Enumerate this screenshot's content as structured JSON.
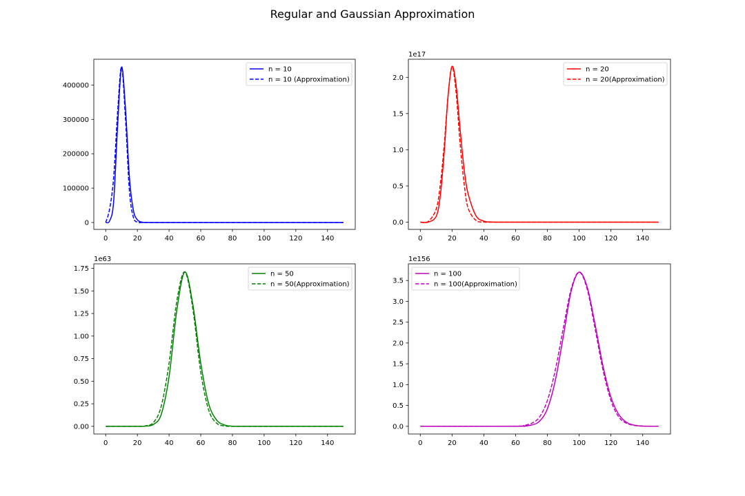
{
  "figure": {
    "title": "Regular and Gaussian Approximation"
  },
  "chart_data": [
    {
      "type": "line",
      "n": 10,
      "x": [
        0,
        2.5,
        5,
        7.5,
        10,
        12.5,
        15,
        17.5,
        20,
        22.5,
        25,
        30,
        40,
        60,
        80,
        100,
        120,
        150
      ],
      "series": [
        {
          "name": "n = 10",
          "style": "solid",
          "color": "#0000ff",
          "values": [
            0,
            5000,
            60000,
            280000,
            452000,
            330000,
            130000,
            35000,
            8000,
            1500,
            200,
            0,
            0,
            0,
            0,
            0,
            0,
            0
          ]
        },
        {
          "name": "n = 10 (Approximation)",
          "style": "dashed",
          "color": "#0000ff",
          "values": [
            0,
            40000,
            130000,
            320000,
            452000,
            300000,
            90000,
            15000,
            1000,
            100,
            0,
            0,
            0,
            0,
            0,
            0,
            0,
            0
          ]
        }
      ],
      "ylim": [
        -20000,
        475000
      ],
      "yticks": [
        0,
        100000,
        200000,
        300000,
        400000
      ],
      "ytick_labels": [
        "0",
        "100000",
        "200000",
        "300000",
        "400000"
      ],
      "offset_text": "",
      "legend_loc": "upper right"
    },
    {
      "type": "line",
      "n": 20,
      "x": [
        0,
        5,
        10,
        12.5,
        15,
        17.5,
        20,
        22.5,
        25,
        27.5,
        30,
        35,
        40,
        45,
        50,
        60,
        100,
        150
      ],
      "series": [
        {
          "name": "n = 20",
          "style": "solid",
          "color": "#ff0000",
          "values": [
            0,
            0.001,
            0.08,
            0.35,
            0.95,
            1.75,
            2.15,
            1.9,
            1.3,
            0.75,
            0.4,
            0.09,
            0.015,
            0.002,
            0,
            0,
            0,
            0
          ]
        },
        {
          "name": "n = 20(Approximation)",
          "style": "dashed",
          "color": "#ff0000",
          "values": [
            0,
            0.01,
            0.18,
            0.5,
            1.05,
            1.75,
            2.15,
            1.8,
            1.1,
            0.55,
            0.2,
            0.025,
            0.001,
            0,
            0,
            0,
            0,
            0
          ]
        }
      ],
      "ylim": [
        -0.1,
        2.25
      ],
      "yticks": [
        0,
        0.5,
        1.0,
        1.5,
        2.0
      ],
      "ytick_labels": [
        "0.0",
        "0.5",
        "1.0",
        "1.5",
        "2.0"
      ],
      "offset_text": "1e17",
      "legend_loc": "upper right"
    },
    {
      "type": "line",
      "n": 50,
      "x": [
        0,
        20,
        25,
        30,
        35,
        40,
        45,
        50,
        55,
        60,
        65,
        70,
        75,
        80,
        90,
        150
      ],
      "series": [
        {
          "name": "n = 50",
          "style": "solid",
          "color": "#008000",
          "values": [
            0,
            0,
            0.002,
            0.02,
            0.13,
            0.55,
            1.3,
            1.71,
            1.35,
            0.7,
            0.25,
            0.07,
            0.015,
            0.002,
            0,
            0
          ]
        },
        {
          "name": "n = 50(Approximation)",
          "style": "dashed",
          "color": "#008000",
          "values": [
            0,
            0,
            0.005,
            0.04,
            0.22,
            0.7,
            1.4,
            1.71,
            1.3,
            0.6,
            0.18,
            0.035,
            0.004,
            0,
            0,
            0
          ]
        }
      ],
      "ylim": [
        -0.085,
        1.8
      ],
      "yticks": [
        0,
        0.25,
        0.5,
        0.75,
        1.0,
        1.25,
        1.5,
        1.75
      ],
      "ytick_labels": [
        "0.00",
        "0.25",
        "0.50",
        "0.75",
        "1.00",
        "1.25",
        "1.50",
        "1.75"
      ],
      "offset_text": "1e63",
      "legend_loc": "upper right"
    },
    {
      "type": "line",
      "n": 100,
      "x": [
        0,
        60,
        65,
        70,
        75,
        80,
        85,
        90,
        95,
        100,
        105,
        110,
        115,
        120,
        125,
        130,
        135,
        140,
        150
      ],
      "series": [
        {
          "name": "n = 100",
          "style": "solid",
          "color": "#bf00bf",
          "values": [
            0,
            0,
            0.005,
            0.03,
            0.12,
            0.42,
            1.1,
            2.15,
            3.25,
            3.7,
            3.35,
            2.45,
            1.45,
            0.7,
            0.28,
            0.09,
            0.025,
            0.006,
            0
          ]
        },
        {
          "name": "n = 100(Approximation)",
          "style": "dashed",
          "color": "#bf00bf",
          "values": [
            0,
            0.003,
            0.02,
            0.07,
            0.22,
            0.62,
            1.35,
            2.35,
            3.3,
            3.7,
            3.3,
            2.35,
            1.35,
            0.62,
            0.22,
            0.07,
            0.02,
            0.004,
            0
          ]
        }
      ],
      "ylim": [
        -0.185,
        3.9
      ],
      "yticks": [
        0,
        0.5,
        1.0,
        1.5,
        2.0,
        2.5,
        3.0,
        3.5
      ],
      "ytick_labels": [
        "0.0",
        "0.5",
        "1.0",
        "1.5",
        "2.0",
        "2.5",
        "3.0",
        "3.5"
      ],
      "offset_text": "1e156",
      "legend_loc": "upper left"
    }
  ],
  "shared_x": {
    "xlim": [
      -7.5,
      157.5
    ],
    "xticks": [
      0,
      20,
      40,
      60,
      80,
      100,
      120,
      140
    ],
    "xtick_labels": [
      "0",
      "20",
      "40",
      "60",
      "80",
      "100",
      "120",
      "140"
    ]
  }
}
